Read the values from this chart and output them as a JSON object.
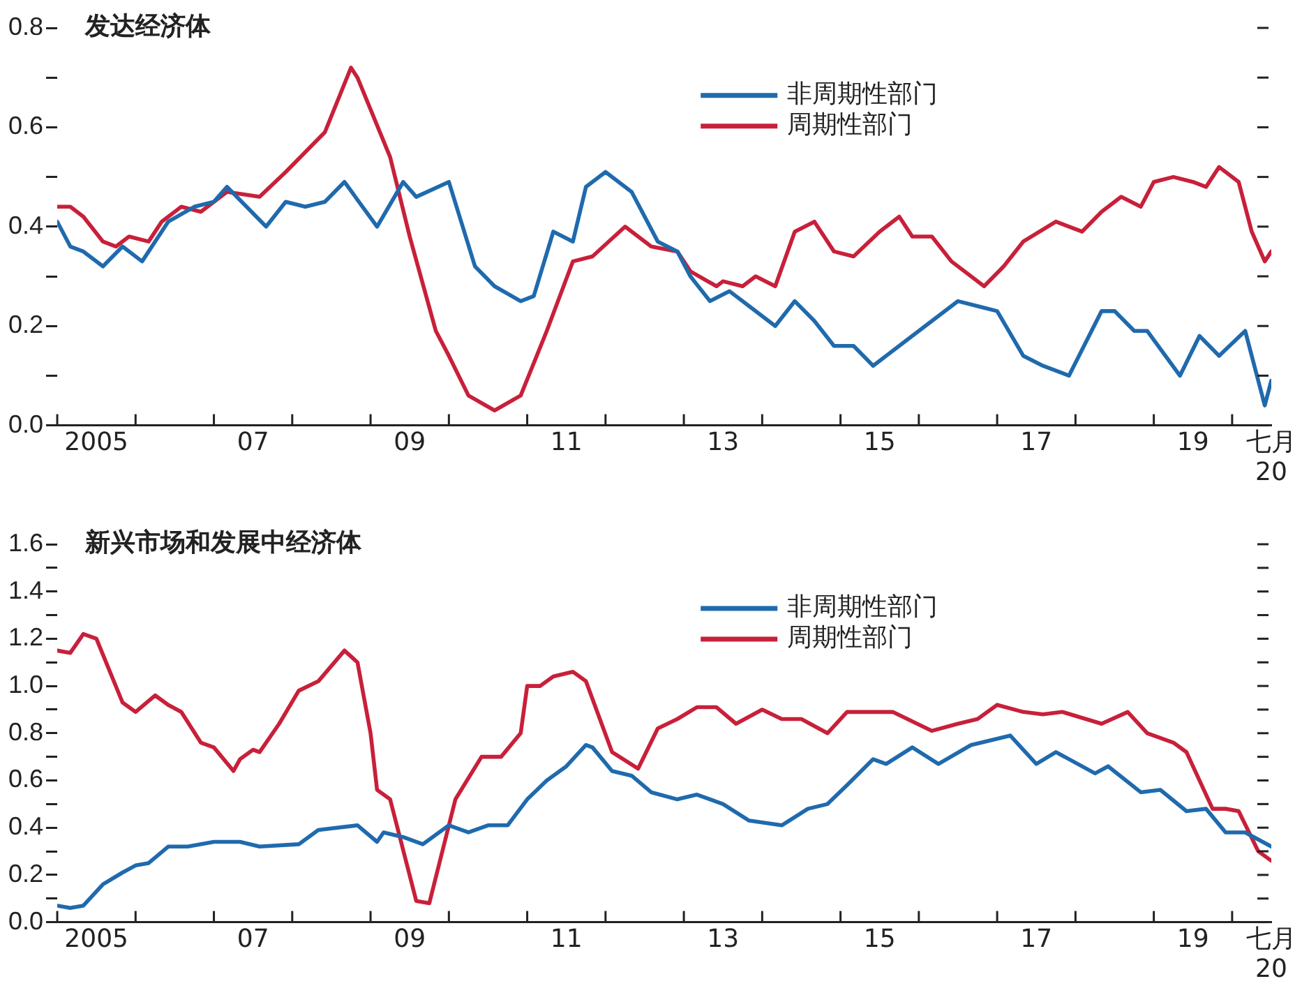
{
  "chart_data": [
    {
      "type": "line",
      "title": "发达经济体",
      "legend": "top",
      "grid": false,
      "xlim": [
        "2005-01",
        "2020-07"
      ],
      "xticks": [
        {
          "value": "2005-01",
          "label": null
        },
        {
          "value": "2005-07",
          "label": "2005"
        },
        {
          "value": "2006-01",
          "label": null
        },
        {
          "value": "2007-01",
          "label": null
        },
        {
          "value": "2007-07",
          "label": "07"
        },
        {
          "value": "2008-01",
          "label": null
        },
        {
          "value": "2009-01",
          "label": null
        },
        {
          "value": "2009-07",
          "label": "09"
        },
        {
          "value": "2010-01",
          "label": null
        },
        {
          "value": "2011-01",
          "label": null
        },
        {
          "value": "2011-07",
          "label": "11"
        },
        {
          "value": "2012-01",
          "label": null
        },
        {
          "value": "2013-01",
          "label": null
        },
        {
          "value": "2013-07",
          "label": "13"
        },
        {
          "value": "2014-01",
          "label": null
        },
        {
          "value": "2015-01",
          "label": null
        },
        {
          "value": "2015-07",
          "label": "15"
        },
        {
          "value": "2016-01",
          "label": null
        },
        {
          "value": "2017-01",
          "label": null
        },
        {
          "value": "2017-07",
          "label": "17"
        },
        {
          "value": "2018-01",
          "label": null
        },
        {
          "value": "2019-01",
          "label": null
        },
        {
          "value": "2019-07",
          "label": "19"
        },
        {
          "value": "2020-01",
          "label": null
        },
        {
          "value": "2020-07",
          "label": "七月\n20"
        }
      ],
      "ylim": [
        0,
        0.8
      ],
      "yticks": [
        {
          "value": 0,
          "label": "0.0"
        },
        {
          "value": 0.1,
          "label": null
        },
        {
          "value": 0.2,
          "label": "0.2"
        },
        {
          "value": 0.3,
          "label": null
        },
        {
          "value": 0.4,
          "label": "0.4"
        },
        {
          "value": 0.5,
          "label": null
        },
        {
          "value": 0.6,
          "label": "0.6"
        },
        {
          "value": 0.7,
          "label": null
        },
        {
          "value": 0.8,
          "label": "0.8"
        }
      ],
      "series": [
        {
          "name": "非周期性部门",
          "color": "#1f6aad",
          "x": [
            "2005-01",
            "2005-03",
            "2005-05",
            "2005-08",
            "2005-11",
            "2006-02",
            "2006-06",
            "2006-10",
            "2007-01",
            "2007-03",
            "2007-09",
            "2007-12",
            "2008-03",
            "2008-06",
            "2008-09",
            "2009-02",
            "2009-06",
            "2009-08",
            "2010-01",
            "2010-05",
            "2010-08",
            "2010-12",
            "2011-02",
            "2011-05",
            "2011-08",
            "2011-10",
            "2012-01",
            "2012-05",
            "2012-09",
            "2012-12",
            "2013-02",
            "2013-05",
            "2013-08",
            "2013-11",
            "2014-03",
            "2014-06",
            "2014-09",
            "2014-12",
            "2015-03",
            "2015-06",
            "2015-11",
            "2016-03",
            "2016-07",
            "2016-10",
            "2017-01",
            "2017-05",
            "2017-08",
            "2017-12",
            "2018-05",
            "2018-07",
            "2018-10",
            "2018-12",
            "2019-05",
            "2019-08",
            "2019-11",
            "2020-03",
            "2020-06",
            "2020-07"
          ],
          "values": [
            0.41,
            0.36,
            0.35,
            0.32,
            0.36,
            0.33,
            0.41,
            0.44,
            0.45,
            0.48,
            0.4,
            0.45,
            0.44,
            0.45,
            0.49,
            0.4,
            0.49,
            0.46,
            0.49,
            0.32,
            0.28,
            0.25,
            0.26,
            0.39,
            0.37,
            0.48,
            0.51,
            0.47,
            0.37,
            0.35,
            0.3,
            0.25,
            0.27,
            0.24,
            0.2,
            0.25,
            0.21,
            0.16,
            0.16,
            0.12,
            0.17,
            0.21,
            0.25,
            0.24,
            0.23,
            0.14,
            0.12,
            0.1,
            0.23,
            0.23,
            0.19,
            0.19,
            0.1,
            0.18,
            0.14,
            0.19,
            0.04,
            0.09
          ]
        },
        {
          "name": "周期性部门",
          "color": "#c8203a",
          "x": [
            "2005-01",
            "2005-03",
            "2005-05",
            "2005-08",
            "2005-10",
            "2005-12",
            "2006-03",
            "2006-05",
            "2006-08",
            "2006-11",
            "2007-03",
            "2007-08",
            "2007-12",
            "2008-03",
            "2008-06",
            "2008-10",
            "2008-11",
            "2009-04",
            "2009-07",
            "2009-11",
            "2010-01",
            "2010-04",
            "2010-08",
            "2010-12",
            "2011-04",
            "2011-08",
            "2011-11",
            "2012-04",
            "2012-06",
            "2012-08",
            "2012-12",
            "2013-02",
            "2013-06",
            "2013-07",
            "2013-10",
            "2013-12",
            "2014-03",
            "2014-06",
            "2014-09",
            "2014-12",
            "2015-03",
            "2015-07",
            "2015-10",
            "2015-12",
            "2016-03",
            "2016-06",
            "2016-11",
            "2017-02",
            "2017-05",
            "2017-10",
            "2018-02",
            "2018-05",
            "2018-08",
            "2018-11",
            "2019-01",
            "2019-04",
            "2019-07",
            "2019-09",
            "2019-11",
            "2020-02",
            "2020-04",
            "2020-06",
            "2020-07"
          ],
          "values": [
            0.44,
            0.44,
            0.42,
            0.37,
            0.36,
            0.38,
            0.37,
            0.41,
            0.44,
            0.43,
            0.47,
            0.46,
            0.51,
            0.55,
            0.59,
            0.72,
            0.7,
            0.54,
            0.38,
            0.19,
            0.14,
            0.06,
            0.03,
            0.06,
            0.19,
            0.33,
            0.34,
            0.4,
            0.38,
            0.36,
            0.35,
            0.31,
            0.28,
            0.29,
            0.28,
            0.3,
            0.28,
            0.39,
            0.41,
            0.35,
            0.34,
            0.39,
            0.42,
            0.38,
            0.38,
            0.33,
            0.28,
            0.32,
            0.37,
            0.41,
            0.39,
            0.43,
            0.46,
            0.44,
            0.49,
            0.5,
            0.49,
            0.48,
            0.52,
            0.49,
            0.39,
            0.33,
            0.35
          ]
        }
      ]
    },
    {
      "type": "line",
      "title": "新兴市场和发展中经济体",
      "legend": "top",
      "grid": false,
      "xlim": [
        "2005-01",
        "2020-07"
      ],
      "xticks": [
        {
          "value": "2005-01",
          "label": null
        },
        {
          "value": "2005-07",
          "label": "2005"
        },
        {
          "value": "2006-01",
          "label": null
        },
        {
          "value": "2007-01",
          "label": null
        },
        {
          "value": "2007-07",
          "label": "07"
        },
        {
          "value": "2008-01",
          "label": null
        },
        {
          "value": "2009-01",
          "label": null
        },
        {
          "value": "2009-07",
          "label": "09"
        },
        {
          "value": "2010-01",
          "label": null
        },
        {
          "value": "2011-01",
          "label": null
        },
        {
          "value": "2011-07",
          "label": "11"
        },
        {
          "value": "2012-01",
          "label": null
        },
        {
          "value": "2013-01",
          "label": null
        },
        {
          "value": "2013-07",
          "label": "13"
        },
        {
          "value": "2014-01",
          "label": null
        },
        {
          "value": "2015-01",
          "label": null
        },
        {
          "value": "2015-07",
          "label": "15"
        },
        {
          "value": "2016-01",
          "label": null
        },
        {
          "value": "2017-01",
          "label": null
        },
        {
          "value": "2017-07",
          "label": "17"
        },
        {
          "value": "2018-01",
          "label": null
        },
        {
          "value": "2019-01",
          "label": null
        },
        {
          "value": "2019-07",
          "label": "19"
        },
        {
          "value": "2020-01",
          "label": null
        },
        {
          "value": "2020-07",
          "label": "七月\n20"
        }
      ],
      "ylim": [
        0,
        1.6
      ],
      "yticks": [
        {
          "value": 0,
          "label": "0.0"
        },
        {
          "value": 0.1,
          "label": null
        },
        {
          "value": 0.2,
          "label": "0.2"
        },
        {
          "value": 0.3,
          "label": null
        },
        {
          "value": 0.4,
          "label": "0.4"
        },
        {
          "value": 0.5,
          "label": null
        },
        {
          "value": 0.6,
          "label": "0.6"
        },
        {
          "value": 0.7,
          "label": null
        },
        {
          "value": 0.8,
          "label": "0.8"
        },
        {
          "value": 0.9,
          "label": null
        },
        {
          "value": 1.0,
          "label": "1.0"
        },
        {
          "value": 1.1,
          "label": null
        },
        {
          "value": 1.2,
          "label": "1.2"
        },
        {
          "value": 1.3,
          "label": null
        },
        {
          "value": 1.4,
          "label": "1.4"
        },
        {
          "value": 1.5,
          "label": null
        },
        {
          "value": 1.6,
          "label": "1.6"
        }
      ],
      "series": [
        {
          "name": "非周期性部门",
          "color": "#1f6aad",
          "x": [
            "2005-01",
            "2005-03",
            "2005-05",
            "2005-08",
            "2005-11",
            "2006-01",
            "2006-03",
            "2006-06",
            "2006-09",
            "2007-01",
            "2007-05",
            "2007-08",
            "2008-02",
            "2008-05",
            "2008-11",
            "2009-02",
            "2009-03",
            "2009-06",
            "2009-09",
            "2010-01",
            "2010-04",
            "2010-07",
            "2010-10",
            "2011-01",
            "2011-04",
            "2011-07",
            "2011-10",
            "2011-11",
            "2012-02",
            "2012-05",
            "2012-08",
            "2012-12",
            "2013-03",
            "2013-07",
            "2013-11",
            "2014-04",
            "2014-08",
            "2014-11",
            "2015-02",
            "2015-06",
            "2015-08",
            "2015-12",
            "2016-04",
            "2016-09",
            "2017-03",
            "2017-07",
            "2017-10",
            "2018-04",
            "2018-06",
            "2018-11",
            "2019-02",
            "2019-06",
            "2019-09",
            "2019-12",
            "2020-03",
            "2020-07"
          ],
          "values": [
            0.07,
            0.06,
            0.07,
            0.16,
            0.21,
            0.24,
            0.25,
            0.32,
            0.32,
            0.34,
            0.34,
            0.32,
            0.33,
            0.39,
            0.41,
            0.34,
            0.38,
            0.36,
            0.33,
            0.41,
            0.38,
            0.41,
            0.41,
            0.52,
            0.6,
            0.66,
            0.75,
            0.74,
            0.64,
            0.62,
            0.55,
            0.52,
            0.54,
            0.5,
            0.43,
            0.41,
            0.48,
            0.5,
            0.58,
            0.69,
            0.67,
            0.74,
            0.67,
            0.75,
            0.79,
            0.67,
            0.72,
            0.63,
            0.66,
            0.55,
            0.56,
            0.47,
            0.48,
            0.38,
            0.38,
            0.32
          ]
        },
        {
          "name": "周期性部门",
          "color": "#c8203a",
          "x": [
            "2005-01",
            "2005-03",
            "2005-05",
            "2005-07",
            "2005-11",
            "2006-01",
            "2006-04",
            "2006-06",
            "2006-08",
            "2006-11",
            "2007-01",
            "2007-04",
            "2007-05",
            "2007-07",
            "2007-08",
            "2007-11",
            "2008-02",
            "2008-05",
            "2008-09",
            "2008-11",
            "2009-01",
            "2009-02",
            "2009-04",
            "2009-08",
            "2009-10",
            "2010-02",
            "2010-06",
            "2010-09",
            "2010-12",
            "2011-01",
            "2011-03",
            "2011-05",
            "2011-08",
            "2011-10",
            "2012-02",
            "2012-06",
            "2012-09",
            "2012-12",
            "2013-03",
            "2013-06",
            "2013-09",
            "2014-01",
            "2014-04",
            "2014-07",
            "2014-11",
            "2015-02",
            "2015-05",
            "2015-09",
            "2016-03",
            "2016-07",
            "2016-10",
            "2017-01",
            "2017-05",
            "2017-08",
            "2017-11",
            "2018-05",
            "2018-09",
            "2018-12",
            "2019-04",
            "2019-06",
            "2019-10",
            "2019-12",
            "2020-02",
            "2020-05",
            "2020-07"
          ],
          "values": [
            1.15,
            1.14,
            1.22,
            1.2,
            0.93,
            0.89,
            0.96,
            0.92,
            0.89,
            0.76,
            0.74,
            0.64,
            0.69,
            0.73,
            0.72,
            0.84,
            0.98,
            1.02,
            1.15,
            1.1,
            0.8,
            0.56,
            0.52,
            0.09,
            0.08,
            0.52,
            0.7,
            0.7,
            0.8,
            1.0,
            1.0,
            1.04,
            1.06,
            1.02,
            0.72,
            0.65,
            0.82,
            0.86,
            0.91,
            0.91,
            0.84,
            0.9,
            0.86,
            0.86,
            0.8,
            0.89,
            0.89,
            0.89,
            0.81,
            0.84,
            0.86,
            0.92,
            0.89,
            0.88,
            0.89,
            0.84,
            0.89,
            0.8,
            0.76,
            0.72,
            0.48,
            0.48,
            0.47,
            0.3,
            0.26
          ]
        }
      ]
    }
  ]
}
